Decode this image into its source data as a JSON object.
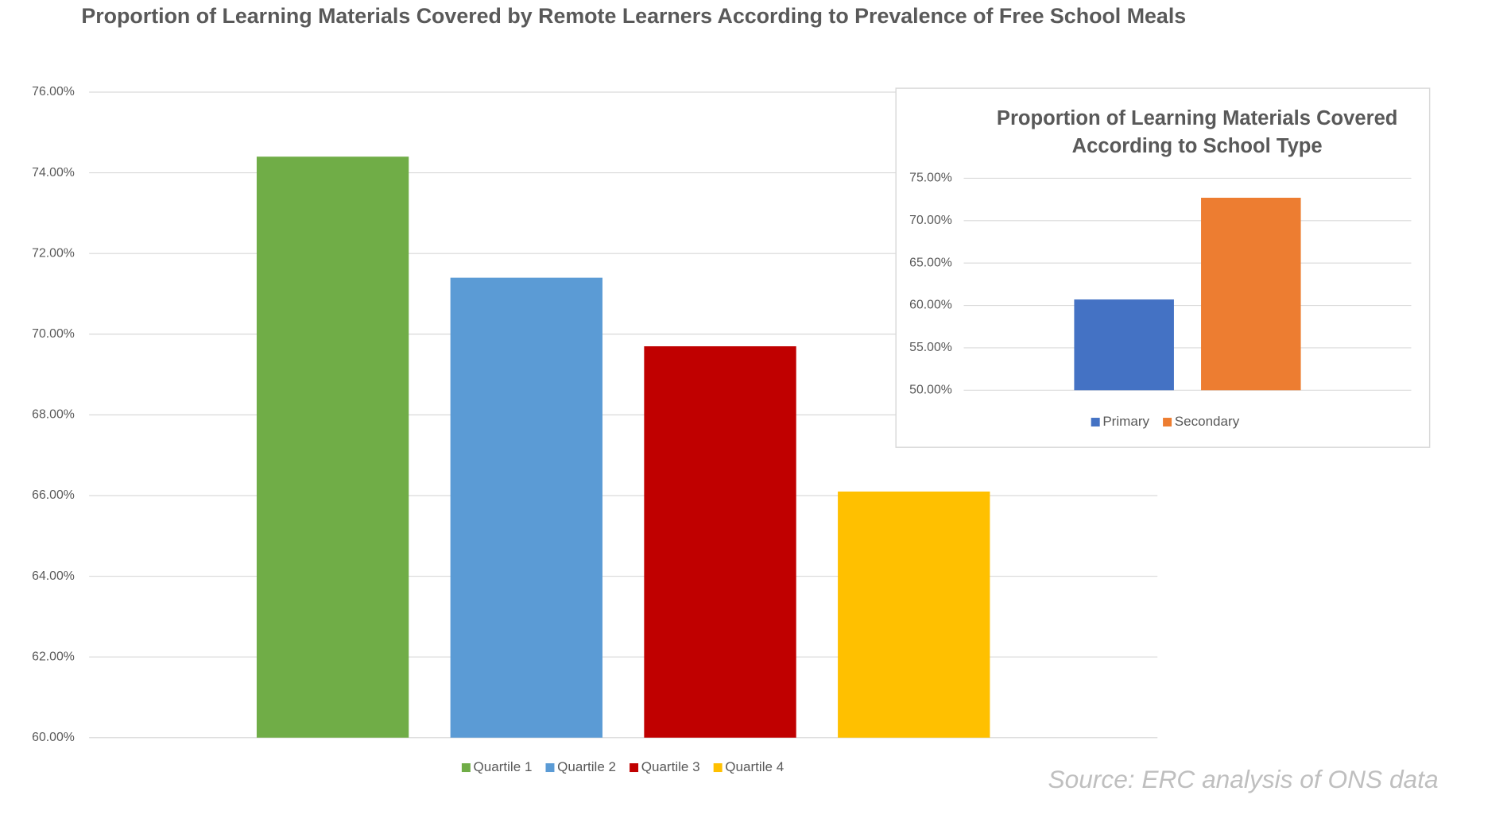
{
  "chart_data": [
    {
      "type": "bar",
      "title": "Proportion of Learning Materials Covered by Remote Learners According to Prevalence of Free School Meals",
      "categories": [
        null
      ],
      "series": [
        {
          "name": "Quartile 1",
          "color": "#70ad47",
          "values": [
            74.4
          ]
        },
        {
          "name": "Quartile 2",
          "color": "#5b9bd5",
          "values": [
            71.4
          ]
        },
        {
          "name": "Quartile 3",
          "color": "#c00000",
          "values": [
            69.7
          ]
        },
        {
          "name": "Quartile 4",
          "color": "#ffc000",
          "values": [
            66.1
          ]
        }
      ],
      "ylim": [
        60,
        76
      ],
      "yticks": [
        {
          "value": 60,
          "label": "60.00%"
        },
        {
          "value": 62,
          "label": "62.00%"
        },
        {
          "value": 64,
          "label": "64.00%"
        },
        {
          "value": 66,
          "label": "66.00%"
        },
        {
          "value": 68,
          "label": "68.00%"
        },
        {
          "value": 70,
          "label": "70.00%"
        },
        {
          "value": 72,
          "label": "72.00%"
        },
        {
          "value": 74,
          "label": "74.00%"
        },
        {
          "value": 76,
          "label": "76.00%"
        }
      ],
      "grid": true,
      "legend": "bottom",
      "annotation": "Source: ERC analysis of ONS data"
    },
    {
      "type": "bar",
      "title": [
        "Proportion of Learning Materials Covered",
        "According to School Type"
      ],
      "categories": [
        null
      ],
      "series": [
        {
          "name": "Primary",
          "color": "#4472c4",
          "values": [
            60.7
          ]
        },
        {
          "name": "Secondary",
          "color": "#ed7d31",
          "values": [
            72.7
          ]
        }
      ],
      "ylim": [
        50,
        75
      ],
      "yticks": [
        {
          "value": 50,
          "label": "50.00%"
        },
        {
          "value": 55,
          "label": "55.00%"
        },
        {
          "value": 60,
          "label": "60.00%"
        },
        {
          "value": 65,
          "label": "65.00%"
        },
        {
          "value": 70,
          "label": "70.00%"
        },
        {
          "value": 75,
          "label": "75.00%"
        }
      ],
      "grid": true,
      "legend": "bottom"
    }
  ]
}
